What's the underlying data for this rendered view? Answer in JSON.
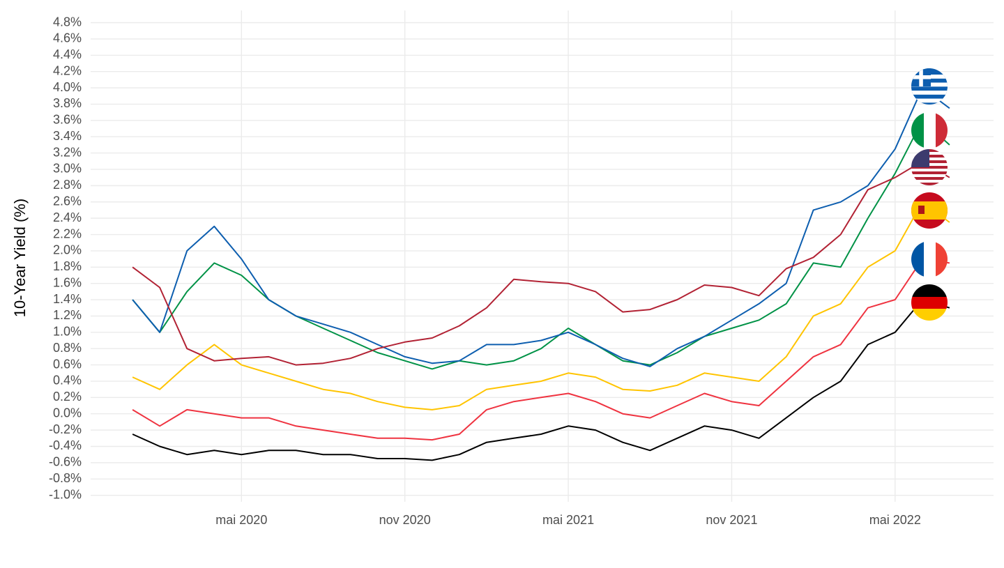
{
  "chart_data": {
    "type": "line",
    "y_label": "10-Year Yield (%)",
    "x": [
      "2020-01",
      "2020-02",
      "2020-03",
      "2020-04",
      "2020-05",
      "2020-06",
      "2020-07",
      "2020-08",
      "2020-09",
      "2020-10",
      "2020-11",
      "2020-12",
      "2021-01",
      "2021-02",
      "2021-03",
      "2021-04",
      "2021-05",
      "2021-06",
      "2021-07",
      "2021-08",
      "2021-09",
      "2021-10",
      "2021-11",
      "2021-12",
      "2022-01",
      "2022-02",
      "2022-03",
      "2022-04",
      "2022-05",
      "2022-06",
      "2022-07"
    ],
    "xlim": [
      "2019-12",
      "2022-08"
    ],
    "xticks": [
      {
        "value": "2020-05",
        "label": "mai 2020"
      },
      {
        "value": "2020-11",
        "label": "nov 2020"
      },
      {
        "value": "2021-05",
        "label": "mai 2021"
      },
      {
        "value": "2021-11",
        "label": "nov 2021"
      },
      {
        "value": "2022-05",
        "label": "mai 2022"
      }
    ],
    "ylim": [
      -1.08,
      4.95
    ],
    "yticks": [
      {
        "value": -1.0,
        "label": "-1.0%"
      },
      {
        "value": -0.8,
        "label": "-0.8%"
      },
      {
        "value": -0.6,
        "label": "-0.6%"
      },
      {
        "value": -0.4,
        "label": "-0.4%"
      },
      {
        "value": -0.2,
        "label": "-0.2%"
      },
      {
        "value": 0,
        "label": "0.0%"
      },
      {
        "value": 0.2,
        "label": "0.2%"
      },
      {
        "value": 0.4,
        "label": "0.4%"
      },
      {
        "value": 0.6,
        "label": "0.6%"
      },
      {
        "value": 0.8,
        "label": "0.8%"
      },
      {
        "value": 1.0,
        "label": "1.0%"
      },
      {
        "value": 1.2,
        "label": "1.2%"
      },
      {
        "value": 1.4,
        "label": "1.4%"
      },
      {
        "value": 1.6,
        "label": "1.6%"
      },
      {
        "value": 1.8,
        "label": "1.8%"
      },
      {
        "value": 2.0,
        "label": "2.0%"
      },
      {
        "value": 2.2,
        "label": "2.2%"
      },
      {
        "value": 2.4,
        "label": "2.4%"
      },
      {
        "value": 2.6,
        "label": "2.6%"
      },
      {
        "value": 2.8,
        "label": "2.8%"
      },
      {
        "value": 3.0,
        "label": "3.0%"
      },
      {
        "value": 3.2,
        "label": "3.2%"
      },
      {
        "value": 3.4,
        "label": "3.4%"
      },
      {
        "value": 3.6,
        "label": "3.6%"
      },
      {
        "value": 3.8,
        "label": "3.8%"
      },
      {
        "value": 4.0,
        "label": "4.0%"
      },
      {
        "value": 4.2,
        "label": "4.2%"
      },
      {
        "value": 4.4,
        "label": "4.4%"
      },
      {
        "value": 4.6,
        "label": "4.6%"
      },
      {
        "value": 4.8,
        "label": "4.8%"
      }
    ],
    "grid": true,
    "series": [
      {
        "color": "#000000",
        "values": [
          -0.25,
          -0.4,
          -0.5,
          -0.45,
          -0.5,
          -0.45,
          -0.45,
          -0.5,
          -0.5,
          -0.55,
          -0.55,
          -0.57,
          -0.5,
          -0.35,
          -0.3,
          -0.25,
          -0.15,
          -0.2,
          -0.35,
          -0.45,
          -0.3,
          -0.15,
          -0.2,
          -0.3,
          -0.05,
          0.2,
          0.4,
          0.85,
          1.0,
          1.4,
          1.3
        ]
      },
      {
        "color": "#EF3340",
        "values": [
          0.05,
          -0.15,
          0.05,
          0.0,
          -0.05,
          -0.05,
          -0.15,
          -0.2,
          -0.25,
          -0.3,
          -0.3,
          -0.32,
          -0.25,
          0.05,
          0.15,
          0.2,
          0.25,
          0.15,
          0.0,
          -0.05,
          0.1,
          0.25,
          0.15,
          0.1,
          0.4,
          0.7,
          0.85,
          1.3,
          1.4,
          1.9,
          1.85
        ]
      },
      {
        "color": "#FFC400",
        "values": [
          0.45,
          0.3,
          0.6,
          0.85,
          0.6,
          0.5,
          0.4,
          0.3,
          0.25,
          0.15,
          0.08,
          0.05,
          0.1,
          0.3,
          0.35,
          0.4,
          0.5,
          0.45,
          0.3,
          0.28,
          0.35,
          0.5,
          0.45,
          0.4,
          0.7,
          1.2,
          1.35,
          1.8,
          2.0,
          2.6,
          2.35
        ]
      },
      {
        "color": "#009246",
        "values": [
          1.4,
          1.0,
          1.5,
          1.85,
          1.7,
          1.4,
          1.2,
          1.05,
          0.9,
          0.75,
          0.65,
          0.55,
          0.65,
          0.6,
          0.65,
          0.8,
          1.05,
          0.85,
          0.65,
          0.6,
          0.75,
          0.95,
          1.05,
          1.15,
          1.35,
          1.85,
          1.8,
          2.4,
          2.95,
          3.6,
          3.3
        ]
      },
      {
        "color": "#0D5EAF",
        "values": [
          1.4,
          1.0,
          2.0,
          2.3,
          1.9,
          1.4,
          1.2,
          1.1,
          1.0,
          0.85,
          0.7,
          0.62,
          0.65,
          0.85,
          0.85,
          0.9,
          1.0,
          0.85,
          0.68,
          0.58,
          0.8,
          0.95,
          1.15,
          1.35,
          1.6,
          2.5,
          2.6,
          2.8,
          3.25,
          4.0,
          3.75
        ]
      },
      {
        "color": "#B22234",
        "values": [
          1.8,
          1.55,
          0.8,
          0.65,
          0.68,
          0.7,
          0.6,
          0.62,
          0.68,
          0.8,
          0.88,
          0.93,
          1.08,
          1.3,
          1.65,
          1.62,
          1.6,
          1.5,
          1.25,
          1.28,
          1.4,
          1.58,
          1.55,
          1.45,
          1.78,
          1.92,
          2.2,
          2.75,
          2.9,
          3.1,
          2.9
        ]
      }
    ]
  }
}
